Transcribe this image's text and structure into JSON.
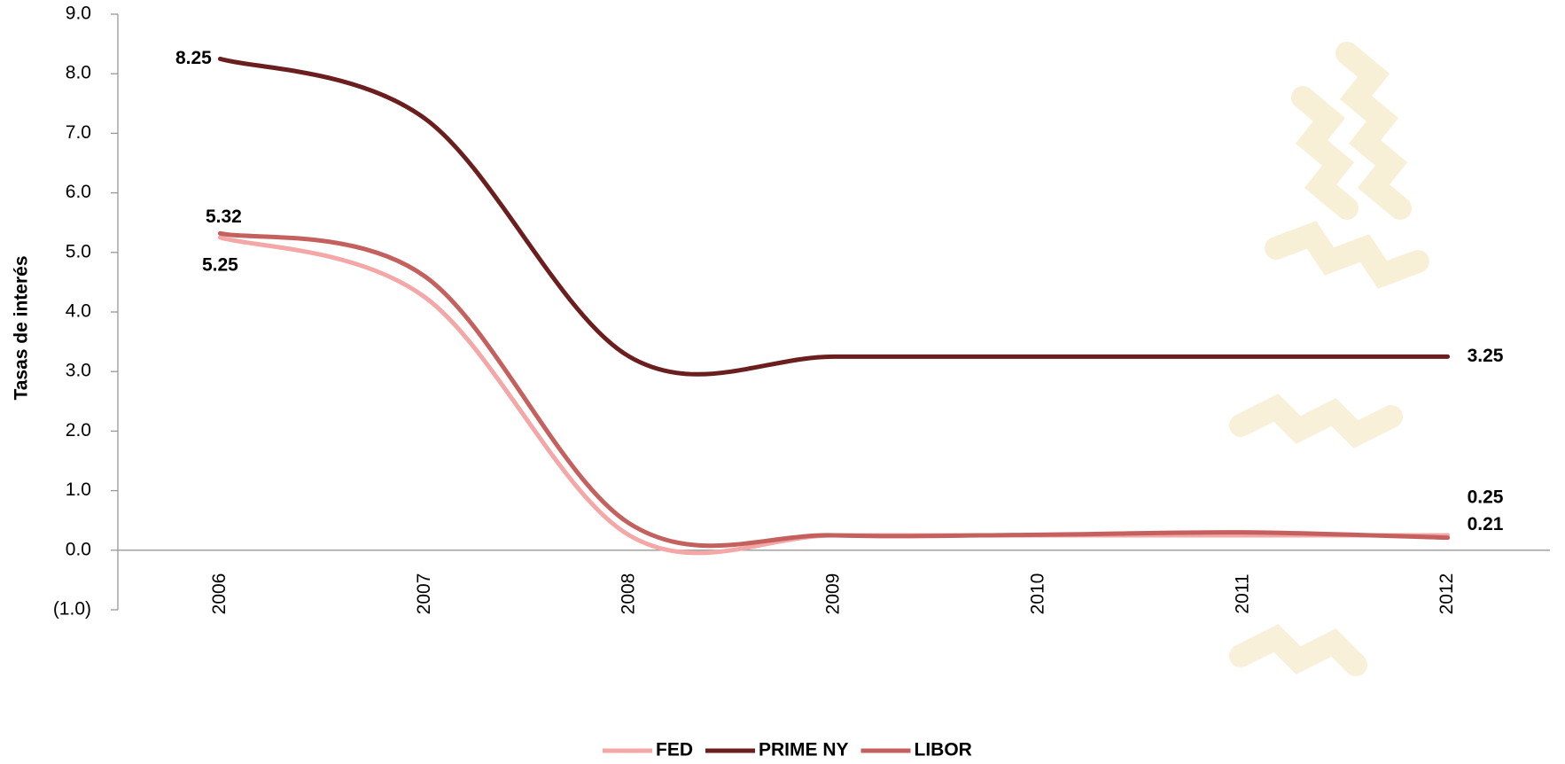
{
  "chart_data": {
    "type": "line",
    "y_label": "Tasas de interés",
    "categories": [
      "2006",
      "2007",
      "2008",
      "2009",
      "2010",
      "2011",
      "2012"
    ],
    "series": [
      {
        "name": "FED",
        "color": "#f4a7a7",
        "values": [
          5.25,
          4.25,
          0.25,
          0.25,
          0.25,
          0.25,
          0.25
        ]
      },
      {
        "name": "PRIME NY",
        "color": "#6b1e1e",
        "values": [
          8.25,
          7.25,
          3.25,
          3.25,
          3.25,
          3.25,
          3.25
        ]
      },
      {
        "name": "LIBOR",
        "color": "#c4615f",
        "values": [
          5.32,
          4.6,
          0.45,
          0.25,
          0.26,
          0.3,
          0.21
        ]
      }
    ],
    "ylim": [
      -1,
      9
    ],
    "yticks": [
      {
        "value": -1,
        "label": "(1.0)"
      },
      {
        "value": 0,
        "label": "0.0"
      },
      {
        "value": 1,
        "label": "1.0"
      },
      {
        "value": 2,
        "label": "2.0"
      },
      {
        "value": 3,
        "label": "3.0"
      },
      {
        "value": 4,
        "label": "4.0"
      },
      {
        "value": 5,
        "label": "5.0"
      },
      {
        "value": 6,
        "label": "6.0"
      },
      {
        "value": 7,
        "label": "7.0"
      },
      {
        "value": 8,
        "label": "8.0"
      },
      {
        "value": 9,
        "label": "9.0"
      }
    ],
    "legend": "bottom"
  }
}
